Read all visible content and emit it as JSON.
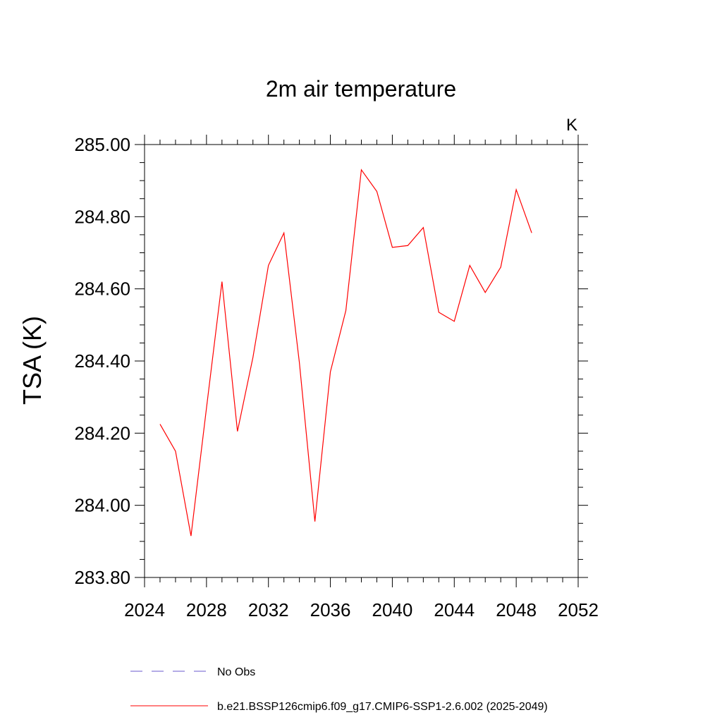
{
  "chart_data": {
    "type": "line",
    "title": "2m air temperature",
    "units_label": "K",
    "ylabel": "TSA  (K)",
    "xlabel": "",
    "xlim": [
      2024,
      2052
    ],
    "ylim": [
      283.8,
      285.0
    ],
    "x_ticks": [
      2024,
      2028,
      2032,
      2036,
      2040,
      2044,
      2048,
      2052
    ],
    "x_tick_labels": [
      "2024",
      "2028",
      "2032",
      "2036",
      "2040",
      "2044",
      "2048",
      "2052"
    ],
    "y_ticks": [
      283.8,
      284.0,
      284.2,
      284.4,
      284.6,
      284.8,
      285.0
    ],
    "y_tick_labels": [
      "283.80",
      "284.00",
      "284.20",
      "284.40",
      "284.60",
      "284.80",
      "285.00"
    ],
    "grid": false,
    "legend_position": "bottom-left",
    "series": [
      {
        "name": "b.e21.BSSP126cmip6.f09_g17.CMIP6-SSP1-2.6.002 (2025-2049)",
        "color": "#ff0000",
        "dash": "solid",
        "x": [
          2025,
          2026,
          2027,
          2028,
          2029,
          2030,
          2031,
          2032,
          2033,
          2034,
          2035,
          2036,
          2037,
          2038,
          2039,
          2040,
          2041,
          2042,
          2043,
          2044,
          2045,
          2046,
          2047,
          2048,
          2049
        ],
        "values": [
          284.225,
          284.15,
          283.915,
          284.27,
          284.62,
          284.205,
          284.41,
          284.665,
          284.755,
          284.395,
          283.955,
          284.37,
          284.54,
          284.93,
          284.87,
          284.715,
          284.72,
          284.77,
          284.535,
          284.51,
          284.665,
          284.59,
          284.66,
          284.875,
          284.755
        ]
      }
    ],
    "legend": [
      {
        "label": "No Obs",
        "color": "#6a5acd",
        "dash": "dashed"
      },
      {
        "label": "b.e21.BSSP126cmip6.f09_g17.CMIP6-SSP1-2.6.002 (2025-2049)",
        "color": "#ff0000",
        "dash": "solid"
      }
    ]
  }
}
